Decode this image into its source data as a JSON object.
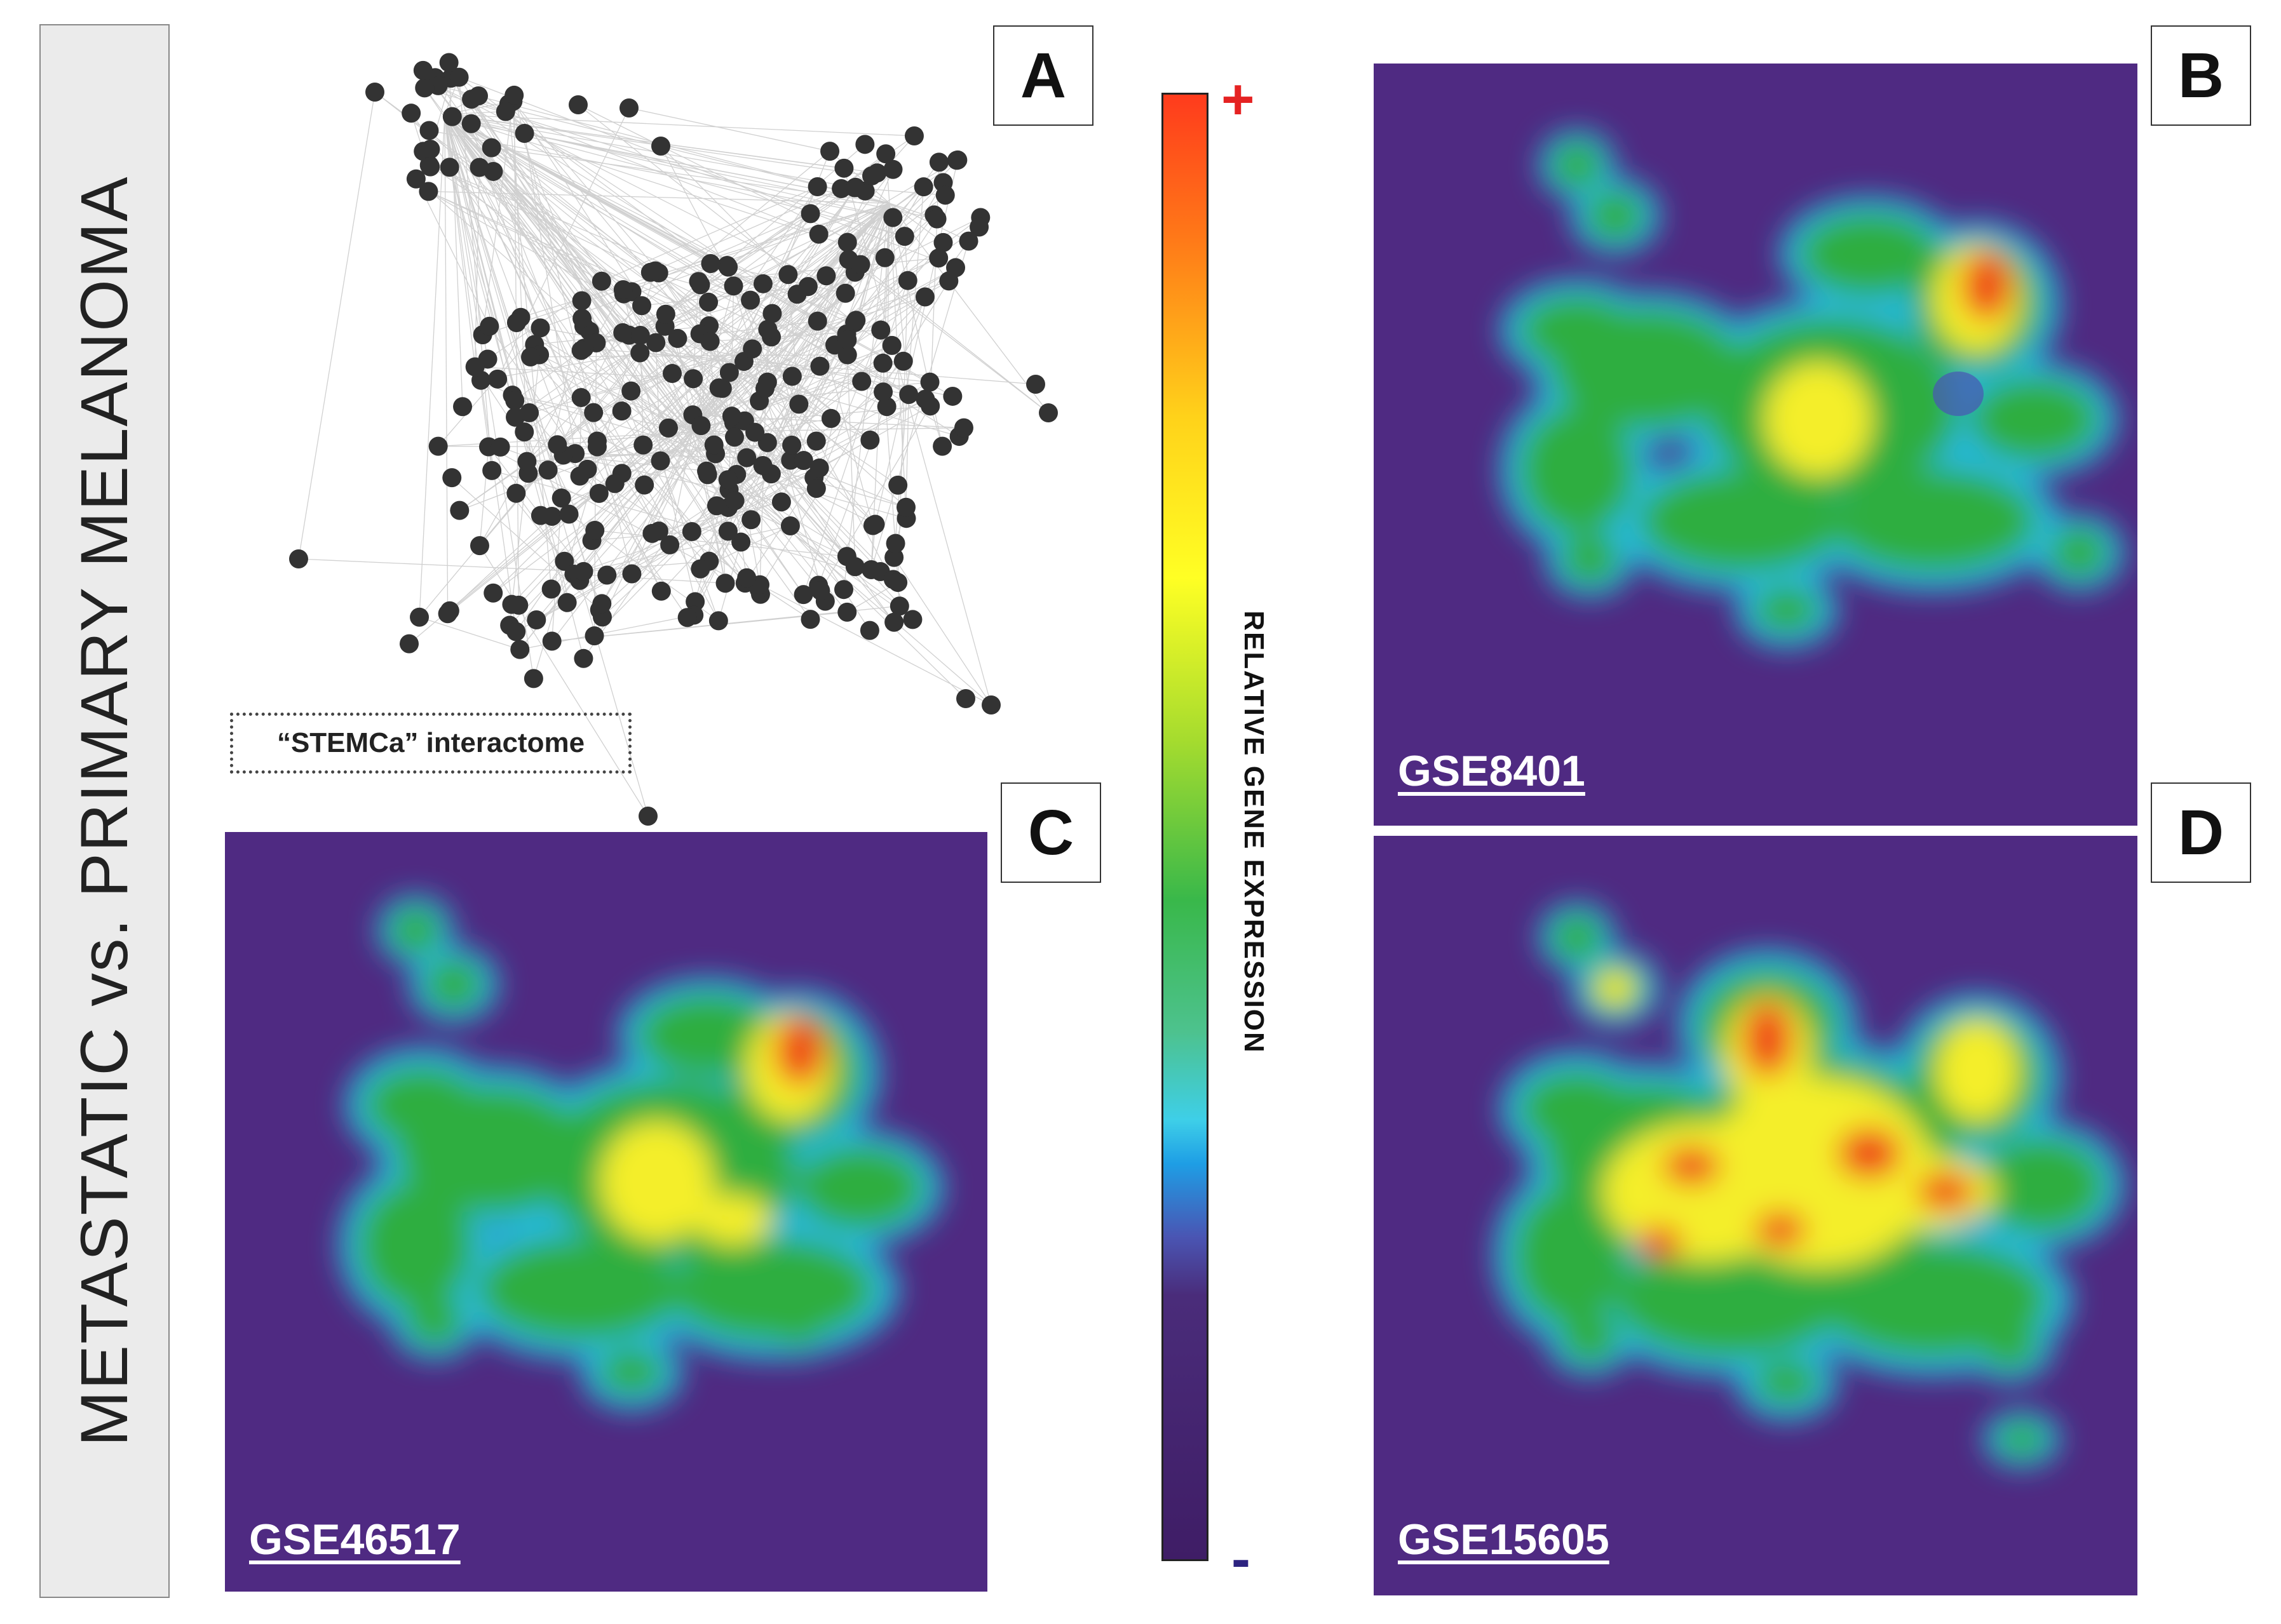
{
  "sidebar": {
    "title": "METASTATIC vs. PRIMARY MELANOMA"
  },
  "panels": {
    "a": {
      "label": "A",
      "caption": "“STEMCa” interactome"
    },
    "b": {
      "label": "B",
      "dataset": "GSE8401"
    },
    "c": {
      "label": "C",
      "dataset": "GSE46517"
    },
    "d": {
      "label": "D",
      "dataset": "GSE15605"
    }
  },
  "colorbar": {
    "title": "RELATIVE GENE EXPRESSION",
    "high_label": "+",
    "low_label": "-",
    "colors": {
      "high": "#ff3b1c",
      "low": "#3f1d66",
      "plus": "#e52222",
      "minus": "#2c2380"
    }
  },
  "colors": {
    "heatmap_background": "#4f2a82",
    "node": "#333333",
    "edge": "#c8c8c8"
  }
}
